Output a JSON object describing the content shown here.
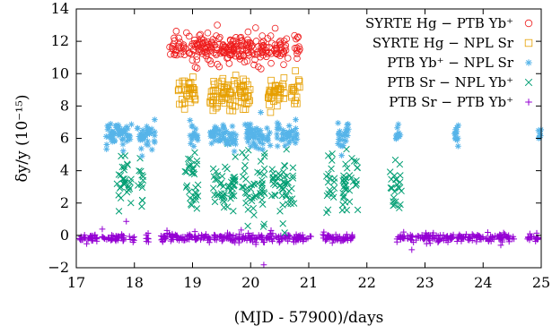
{
  "chart_data": {
    "type": "scatter",
    "xlabel": "(MJD - 57900)/days",
    "ylabel": "δy/y (10⁻¹⁵)",
    "xlim": [
      17,
      25
    ],
    "ylim": [
      -2,
      14
    ],
    "xticks": [
      "17",
      "18",
      "19",
      "20",
      "21",
      "22",
      "23",
      "24",
      "25"
    ],
    "yticks": [
      "−2",
      "0",
      "2",
      "4",
      "6",
      "8",
      "10",
      "12",
      "14"
    ],
    "grid": false,
    "legend_position": "top-right",
    "series": [
      {
        "name": "SYRTE Hg − PTB Yb⁺",
        "marker": "circle",
        "color": "#ee1c1c",
        "center": 11.5,
        "spread": 0.45,
        "x_ranges": [
          [
            18.6,
            20.65
          ],
          [
            20.75,
            20.85
          ]
        ]
      },
      {
        "name": "SYRTE Hg − NPL Sr",
        "marker": "square",
        "color": "#e69f00",
        "center": 8.8,
        "spread": 0.5,
        "x_ranges": [
          [
            18.75,
            19.05
          ],
          [
            19.3,
            20.0
          ],
          [
            20.3,
            20.6
          ],
          [
            20.7,
            20.85
          ]
        ]
      },
      {
        "name": "PTB Yb⁺ − NPL Sr",
        "marker": "star",
        "color": "#56b4e9",
        "center": 6.2,
        "spread": 0.4,
        "x_ranges": [
          [
            17.5,
            17.95
          ],
          [
            18.05,
            18.35
          ],
          [
            18.95,
            19.1
          ],
          [
            19.3,
            19.75
          ],
          [
            19.9,
            20.35
          ],
          [
            20.45,
            20.8
          ],
          [
            21.5,
            21.7
          ],
          [
            22.5,
            22.6
          ],
          [
            23.5,
            23.6
          ],
          [
            24.95,
            25.0
          ]
        ]
      },
      {
        "name": "PTB Sr − NPL Yb⁺",
        "marker": "cross",
        "color": "#009e73",
        "center": 3.2,
        "spread": 0.9,
        "x_ranges": [
          [
            17.7,
            17.95
          ],
          [
            18.05,
            18.15
          ],
          [
            18.85,
            19.1
          ],
          [
            19.35,
            19.75
          ],
          [
            19.85,
            20.25
          ],
          [
            20.35,
            20.75
          ],
          [
            21.3,
            21.45
          ],
          [
            21.55,
            21.85
          ],
          [
            22.4,
            22.6
          ]
        ]
      },
      {
        "name": "PTB Sr − PTB Yb⁺",
        "marker": "plus",
        "color": "#9400d3",
        "center": -0.15,
        "spread": 0.12,
        "x_ranges": [
          [
            17.05,
            18.0
          ],
          [
            18.2,
            18.25
          ],
          [
            18.45,
            21.05
          ],
          [
            21.2,
            21.75
          ],
          [
            22.5,
            23.5
          ],
          [
            23.55,
            24.55
          ],
          [
            24.75,
            24.95
          ]
        ]
      }
    ]
  }
}
